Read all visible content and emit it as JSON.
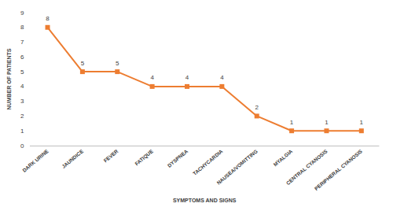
{
  "chart_data": {
    "type": "line",
    "x_label": "SYMPTOMS AND SIGNS",
    "y_label": "NUMBER OF PATIENTS",
    "categories": [
      "DARK URINE",
      "JAUNDICE",
      "FEVER",
      "FATIQUE",
      "DYSPNEA",
      "TACHYCARDIA",
      "NAUSEA/VOMITTING",
      "MYALGIA",
      "CENTRAL CYANOSIS",
      "PERIPHERAL CYANOSIS"
    ],
    "values": [
      8,
      5,
      5,
      4,
      4,
      4,
      2,
      1,
      1,
      1
    ],
    "color": "#ed7d31",
    "marker": "square",
    "line_style": "solid",
    "data_labels": true,
    "grid": false,
    "ylim": [
      0,
      9
    ],
    "yticks": [
      0,
      1,
      2,
      3,
      4,
      5,
      6,
      7,
      8,
      9
    ]
  }
}
